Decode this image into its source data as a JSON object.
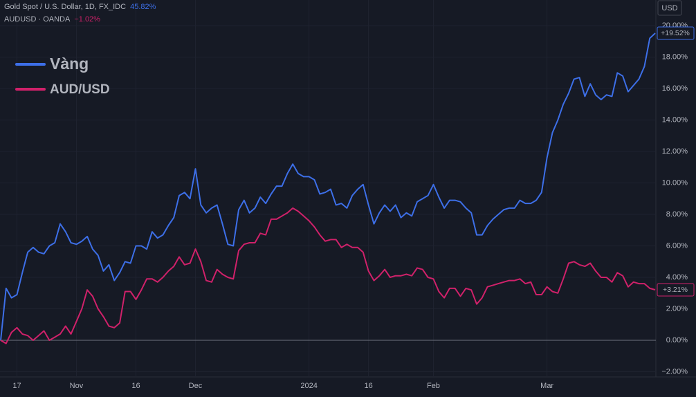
{
  "chart_data": {
    "type": "line",
    "header": [
      {
        "name": "Gold Spot / U.S. Dollar, 1D, FX_IDC",
        "change": "45.82%",
        "color": "#3d6fe8"
      },
      {
        "name": "AUDUSD · OANDA",
        "change": "−1.02%",
        "color": "#d0216a"
      }
    ],
    "currency": "USD",
    "categories": [
      null,
      null,
      null,
      "17",
      null,
      null,
      null,
      null,
      null,
      null,
      null,
      null,
      null,
      null,
      "Nov",
      null,
      null,
      null,
      null,
      null,
      null,
      null,
      null,
      null,
      null,
      "16",
      null,
      null,
      null,
      null,
      null,
      null,
      null,
      null,
      null,
      null,
      "Dec",
      null,
      null,
      null,
      null,
      null,
      null,
      null,
      null,
      null,
      null,
      null,
      null,
      null,
      null,
      null,
      null,
      null,
      null,
      null,
      null,
      "2024",
      null,
      null,
      null,
      null,
      null,
      null,
      null,
      null,
      null,
      null,
      "16",
      null,
      null,
      null,
      null,
      null,
      null,
      null,
      null,
      null,
      null,
      null,
      "Feb",
      null,
      null,
      null,
      null,
      null,
      null,
      null,
      null,
      null,
      null,
      null,
      null,
      null,
      null,
      null,
      null,
      null,
      null,
      null,
      null,
      "Mar",
      null,
      null,
      null,
      null,
      null,
      null,
      null,
      null,
      null,
      null,
      null,
      null,
      null,
      null,
      null,
      null,
      null,
      null,
      null,
      null
    ],
    "series": [
      {
        "name": "Vàng",
        "color": "#3d6fe8",
        "last_label": "+19.52%",
        "values": [
          0,
          3.3,
          2.7,
          2.9,
          4.3,
          5.6,
          5.9,
          5.6,
          5.5,
          6.0,
          6.2,
          7.4,
          6.9,
          6.2,
          6.1,
          6.3,
          6.6,
          5.8,
          5.4,
          4.4,
          4.8,
          3.8,
          4.3,
          5.0,
          4.9,
          6.0,
          6.0,
          5.8,
          6.9,
          6.5,
          6.7,
          7.3,
          7.8,
          9.2,
          9.4,
          9.0,
          10.9,
          8.6,
          8.1,
          8.4,
          8.6,
          7.4,
          6.1,
          6.0,
          8.3,
          8.9,
          8.1,
          8.4,
          9.1,
          8.7,
          9.3,
          9.8,
          9.8,
          10.6,
          11.2,
          10.6,
          10.4,
          10.4,
          10.2,
          9.3,
          9.4,
          9.6,
          8.6,
          8.7,
          8.4,
          9.2,
          9.6,
          9.9,
          8.6,
          7.4,
          8.1,
          8.6,
          8.2,
          8.6,
          7.8,
          8.1,
          7.9,
          8.8,
          9.0,
          9.2,
          9.9,
          9.1,
          8.4,
          8.9,
          8.9,
          8.8,
          8.4,
          8.1,
          6.7,
          6.7,
          7.3,
          7.7,
          8.0,
          8.3,
          8.4,
          8.4,
          8.9,
          8.7,
          8.7,
          8.9,
          9.4,
          11.6,
          13.2,
          14.0,
          15.0,
          15.7,
          16.6,
          16.7,
          15.5,
          16.3,
          15.6,
          15.3,
          15.6,
          15.5,
          17.0,
          16.8,
          15.8,
          16.2,
          16.6,
          17.4,
          19.2,
          19.52
        ]
      },
      {
        "name": "AUD/USD",
        "color": "#d0216a",
        "last_label": "+3.21%",
        "values": [
          0,
          -0.2,
          0.5,
          0.8,
          0.4,
          0.3,
          0.0,
          0.3,
          0.6,
          0.0,
          0.2,
          0.4,
          0.9,
          0.4,
          1.2,
          2.0,
          3.2,
          2.8,
          2.0,
          1.5,
          0.9,
          0.8,
          1.1,
          3.1,
          3.1,
          2.6,
          3.2,
          3.9,
          3.9,
          3.7,
          4.0,
          4.4,
          4.7,
          5.3,
          4.8,
          4.9,
          5.8,
          5.0,
          3.8,
          3.7,
          4.5,
          4.2,
          4.0,
          3.9,
          5.7,
          6.1,
          6.2,
          6.2,
          6.8,
          6.7,
          7.7,
          7.7,
          7.9,
          8.1,
          8.4,
          8.2,
          7.9,
          7.6,
          7.2,
          6.7,
          6.3,
          6.4,
          6.4,
          5.9,
          6.1,
          5.9,
          5.9,
          5.6,
          4.4,
          3.8,
          4.1,
          4.5,
          4.0,
          4.1,
          4.1,
          4.2,
          4.1,
          4.6,
          4.5,
          4.0,
          3.9,
          3.1,
          2.7,
          3.3,
          3.3,
          2.8,
          3.3,
          3.2,
          2.3,
          2.7,
          3.4,
          3.5,
          3.6,
          3.7,
          3.8,
          3.8,
          3.9,
          3.6,
          3.7,
          2.9,
          2.9,
          3.4,
          3.1,
          3.0,
          3.9,
          4.9,
          5.0,
          4.8,
          4.7,
          4.9,
          4.4,
          4.0,
          4.0,
          3.7,
          4.3,
          4.1,
          3.4,
          3.7,
          3.6,
          3.6,
          3.3,
          3.21
        ]
      }
    ],
    "ylim": [
      -2.33,
      21.63
    ],
    "yticks": [
      {
        "value": -2,
        "label": "−2.00%"
      },
      {
        "value": 0,
        "label": "0.00%"
      },
      {
        "value": 2,
        "label": "2.00%"
      },
      {
        "value": 4,
        "label": "4.00%"
      },
      {
        "value": 6,
        "label": "6.00%"
      },
      {
        "value": 8,
        "label": "8.00%"
      },
      {
        "value": 10,
        "label": "10.00%"
      },
      {
        "value": 12,
        "label": "12.00%"
      },
      {
        "value": 14,
        "label": "14.00%"
      },
      {
        "value": 16,
        "label": "16.00%"
      },
      {
        "value": 18,
        "label": "18.00%"
      },
      {
        "value": 20,
        "label": "20.00%"
      }
    ],
    "grid": true,
    "zero_line": true,
    "legend": "top-left"
  }
}
